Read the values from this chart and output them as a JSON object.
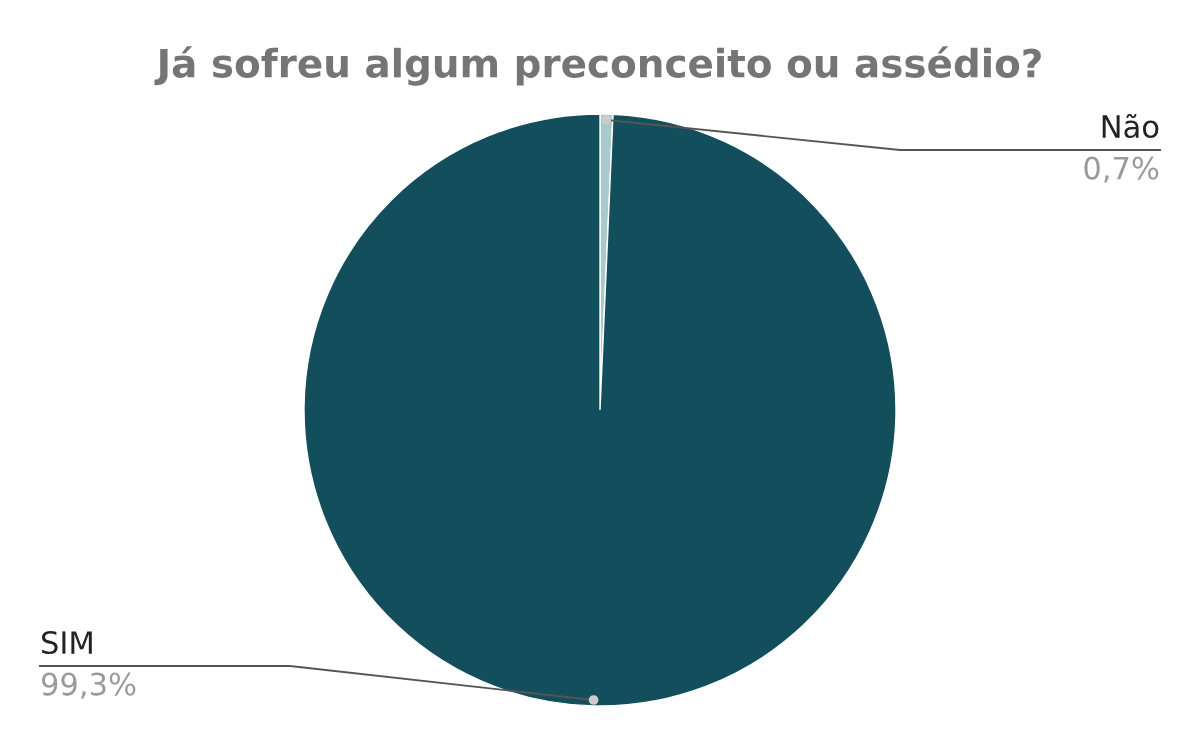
{
  "chart_data": {
    "type": "pie",
    "title": "Já sofreu algum preconceito ou assédio?",
    "categories": [
      "Não",
      "SIM"
    ],
    "values": [
      0.7,
      99.3
    ],
    "colors": [
      "#a9c9cd",
      "#134e5c"
    ],
    "value_labels": [
      "0,7%",
      "99,3%"
    ]
  }
}
